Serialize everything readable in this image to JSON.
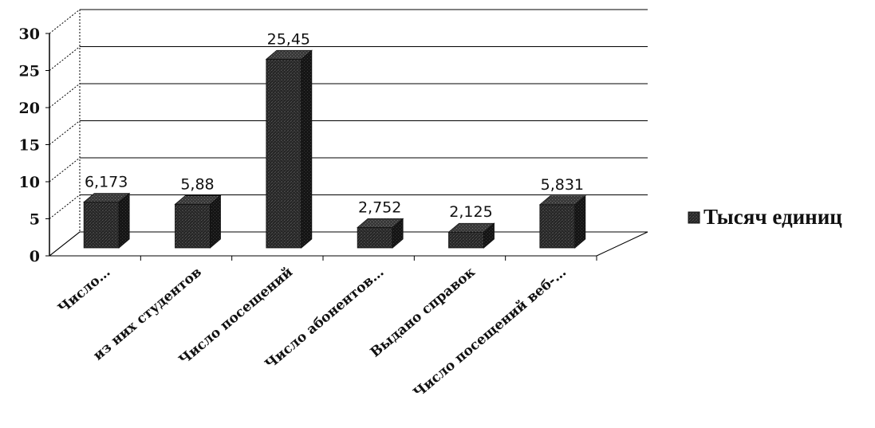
{
  "chart_data": {
    "type": "bar",
    "categories": [
      "Число…",
      "из них студентов",
      "Число посещений",
      "Число абонентов…",
      "Выдано справок",
      "Число посещений веб-…"
    ],
    "series": [
      {
        "name": "Тысяч единиц",
        "values": [
          6.173,
          5.88,
          25.45,
          2.752,
          2.125,
          5.831
        ],
        "data_labels": [
          "6,173",
          "5,88",
          "25,45",
          "2,752",
          "2,125",
          "5,831"
        ]
      }
    ],
    "yticks": [
      "0",
      "5",
      "10",
      "15",
      "20",
      "25",
      "30"
    ],
    "ylim": [
      0,
      30
    ],
    "grid": true,
    "legend": "right",
    "style": "3d-column",
    "colors": {
      "bar": "#2a2a2a",
      "grid": "#000000"
    }
  }
}
